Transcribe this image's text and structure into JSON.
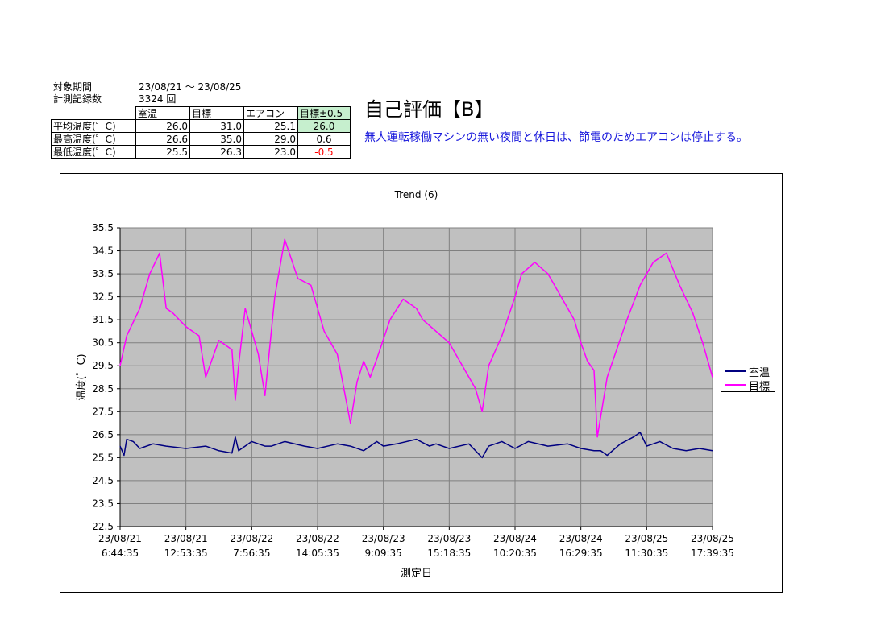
{
  "info": {
    "period_label": "対象期間",
    "period_value": "23/08/21  ～  23/08/25",
    "count_label": "計測記録数",
    "count_value": "3324  回"
  },
  "summary": {
    "headers": [
      "",
      "室温",
      "目標",
      "エアコン",
      "目標±0.5"
    ],
    "rows": [
      {
        "label": "平均温度(゜C)",
        "values": [
          "26.0",
          "31.0",
          "25.1",
          "26.0"
        ]
      },
      {
        "label": "最高温度(゜C)",
        "values": [
          "26.6",
          "35.0",
          "29.0",
          "0.6"
        ]
      },
      {
        "label": "最低温度(゜C)",
        "values": [
          "25.5",
          "26.3",
          "23.0",
          "-0.5"
        ]
      }
    ]
  },
  "grade": "自己評価【B】",
  "comment": "無人運転稼働マシンの無い夜間と休日は、節電のためエアコンは停止する。",
  "colors": {
    "room": "#000080",
    "target": "#ff00ff",
    "plot_bg": "#c0c0c0",
    "grid": "#808080",
    "highlight": "#c6efce",
    "negative": "#ff0000",
    "comment": "#1a1adc"
  },
  "chart_data": {
    "type": "line",
    "title": "Trend (6)",
    "xlabel": "測定日",
    "ylabel": "温度(゜C)",
    "ylim": [
      22.5,
      35.5
    ],
    "yticks": [
      "35.5",
      "34.5",
      "33.5",
      "32.5",
      "31.5",
      "30.5",
      "29.5",
      "28.5",
      "27.5",
      "26.5",
      "25.5",
      "24.5",
      "23.5",
      "22.5"
    ],
    "x_ticks": [
      [
        "23/08/21",
        "6:44:35"
      ],
      [
        "23/08/21",
        "12:53:35"
      ],
      [
        "23/08/22",
        "7:56:35"
      ],
      [
        "23/08/22",
        "14:05:35"
      ],
      [
        "23/08/23",
        "9:09:35"
      ],
      [
        "23/08/23",
        "15:18:35"
      ],
      [
        "23/08/24",
        "10:20:35"
      ],
      [
        "23/08/24",
        "16:29:35"
      ],
      [
        "23/08/25",
        "11:30:35"
      ],
      [
        "23/08/25",
        "17:39:35"
      ]
    ],
    "grid": true,
    "legend_position": "right",
    "series": [
      {
        "name": "室温",
        "x": [
          0,
          0.06,
          0.1,
          0.2,
          0.3,
          0.5,
          0.7,
          1.0,
          1.3,
          1.5,
          1.7,
          1.75,
          1.8,
          2.0,
          2.2,
          2.3,
          2.5,
          2.8,
          3.0,
          3.3,
          3.5,
          3.7,
          3.9,
          4.0,
          4.2,
          4.5,
          4.7,
          4.8,
          5.0,
          5.3,
          5.5,
          5.6,
          5.8,
          6.0,
          6.2,
          6.5,
          6.8,
          7.0,
          7.2,
          7.3,
          7.4,
          7.6,
          7.8,
          7.9,
          8.0,
          8.2,
          8.4,
          8.6,
          8.8,
          9.0
        ],
        "y": [
          26.0,
          25.6,
          26.3,
          26.2,
          25.9,
          26.1,
          26.0,
          25.9,
          26.0,
          25.8,
          25.7,
          26.4,
          25.8,
          26.2,
          26.0,
          26.0,
          26.2,
          26.0,
          25.9,
          26.1,
          26.0,
          25.8,
          26.2,
          26.0,
          26.1,
          26.3,
          26.0,
          26.1,
          25.9,
          26.1,
          25.5,
          26.0,
          26.2,
          25.9,
          26.2,
          26.0,
          26.1,
          25.9,
          25.8,
          25.8,
          25.6,
          26.1,
          26.4,
          26.6,
          26.0,
          26.2,
          25.9,
          25.8,
          25.9,
          25.8
        ]
      },
      {
        "name": "目標",
        "x": [
          0,
          0.1,
          0.3,
          0.45,
          0.6,
          0.7,
          0.8,
          1.0,
          1.2,
          1.3,
          1.5,
          1.7,
          1.75,
          1.8,
          1.9,
          2.1,
          2.2,
          2.35,
          2.5,
          2.7,
          2.9,
          3.1,
          3.3,
          3.4,
          3.5,
          3.6,
          3.7,
          3.8,
          3.9,
          4.1,
          4.3,
          4.5,
          4.6,
          4.8,
          5.0,
          5.2,
          5.4,
          5.5,
          5.6,
          5.8,
          6.0,
          6.1,
          6.3,
          6.5,
          6.7,
          6.9,
          7.0,
          7.1,
          7.2,
          7.25,
          7.4,
          7.7,
          7.9,
          8.1,
          8.3,
          8.5,
          8.7,
          8.85,
          9.0
        ],
        "y": [
          29.5,
          30.8,
          32.0,
          33.5,
          34.4,
          32.0,
          31.8,
          31.2,
          30.8,
          29.0,
          30.6,
          30.2,
          28.0,
          29.5,
          32.0,
          30.0,
          28.2,
          32.5,
          35.0,
          33.3,
          33.0,
          31.0,
          30.0,
          28.5,
          27.0,
          28.8,
          29.7,
          29.0,
          29.8,
          31.5,
          32.4,
          32.0,
          31.5,
          31.0,
          30.5,
          29.5,
          28.5,
          27.5,
          29.5,
          30.8,
          32.5,
          33.5,
          34.0,
          33.5,
          32.5,
          31.5,
          30.5,
          29.7,
          29.3,
          26.4,
          29.0,
          31.5,
          33.0,
          34.0,
          34.4,
          33.0,
          31.8,
          30.5,
          29.0
        ]
      }
    ]
  }
}
